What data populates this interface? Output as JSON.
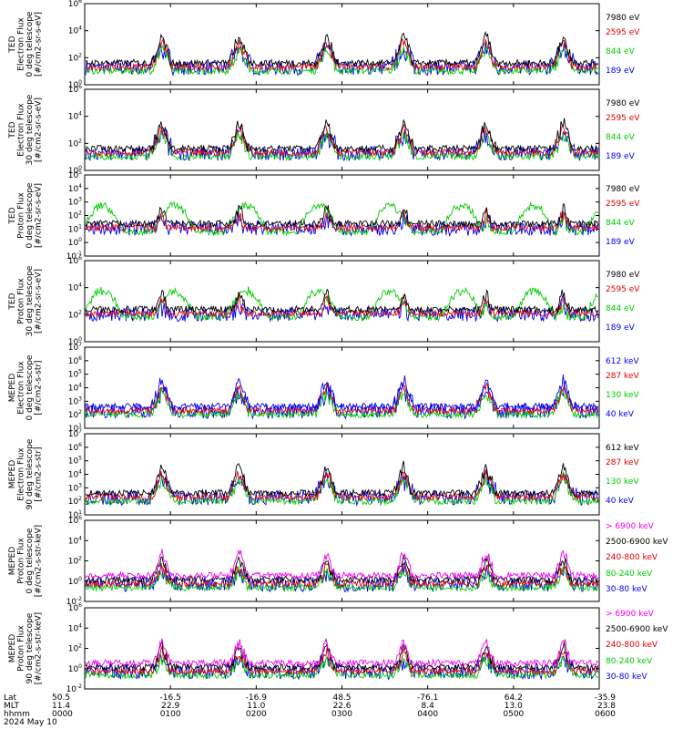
{
  "figure": {
    "panels": [
      {
        "ylabel": [
          "TED",
          "Electron Flux",
          "0 deg telescope",
          "[#/cm2-sr-s-eV]"
        ],
        "yticks": [
          "10^0",
          "10^2",
          "10^4",
          "10^6"
        ],
        "channels": [
          {
            "label": "7980 eV",
            "color": "#000000"
          },
          {
            "label": "2595 eV",
            "color": "#e00000"
          },
          {
            "label": "844 eV",
            "color": "#00cc00"
          },
          {
            "label": "189 eV",
            "color": "#0000ee"
          }
        ]
      },
      {
        "ylabel": [
          "TED",
          "Electron Flux",
          "30 deg telescope",
          "[#/cm2-sr-s-eV]"
        ],
        "yticks": [
          "10^0",
          "10^2",
          "10^4",
          "10^6"
        ],
        "channels": [
          {
            "label": "7980 eV",
            "color": "#000000"
          },
          {
            "label": "2595 eV",
            "color": "#e00000"
          },
          {
            "label": "844 eV",
            "color": "#00cc00"
          },
          {
            "label": "189 eV",
            "color": "#0000ee"
          }
        ]
      },
      {
        "ylabel": [
          "TED",
          "Proton Flux",
          "0 deg telescope",
          "[#/cm2-sr-s-eV]"
        ],
        "yticks": [
          "10^-1",
          "10^0",
          "10^1",
          "10^2",
          "10^3",
          "10^4",
          "10^5"
        ],
        "channels": [
          {
            "label": "7980 eV",
            "color": "#000000"
          },
          {
            "label": "2595 eV",
            "color": "#e00000"
          },
          {
            "label": "844 eV",
            "color": "#00cc00"
          },
          {
            "label": "189 eV",
            "color": "#0000ee"
          }
        ]
      },
      {
        "ylabel": [
          "TED",
          "Proton Flux",
          "30 deg telescope",
          "[#/cm2-sr-s-eV]"
        ],
        "yticks": [
          "10^0",
          "10^2",
          "10^4",
          "10^6"
        ],
        "channels": [
          {
            "label": "7980 eV",
            "color": "#000000"
          },
          {
            "label": "2595 eV",
            "color": "#e00000"
          },
          {
            "label": "844 eV",
            "color": "#00cc00"
          },
          {
            "label": "189 eV",
            "color": "#0000ee"
          }
        ]
      },
      {
        "ylabel": [
          "MEPED",
          "Electron Flux",
          "0 deg telescope",
          "[#/cm2-s-str]"
        ],
        "yticks": [
          "10^1",
          "10^2",
          "10^3",
          "10^4",
          "10^5",
          "10^6",
          "10^7"
        ],
        "channels": [
          {
            "label": "612 keV",
            "color": "#0000ee"
          },
          {
            "label": "287 keV",
            "color": "#e00000"
          },
          {
            "label": "130 keV",
            "color": "#00cc00"
          },
          {
            "label": "40 keV",
            "color": "#0000ee"
          }
        ]
      },
      {
        "ylabel": [
          "MEPED",
          "Electron Flux",
          "90 deg telescope",
          "[#/cm2-s-str]"
        ],
        "yticks": [
          "10^1",
          "10^2",
          "10^3",
          "10^4",
          "10^5",
          "10^6",
          "10^7"
        ],
        "channels": [
          {
            "label": "612 keV",
            "color": "#000000"
          },
          {
            "label": "287 keV",
            "color": "#e00000"
          },
          {
            "label": "130 keV",
            "color": "#00cc00"
          },
          {
            "label": "40 keV",
            "color": "#0000ee"
          }
        ]
      },
      {
        "ylabel": [
          "MEPED",
          "Proton Flux",
          "0 deg telescope",
          "[#/cm2-s-str-keV]"
        ],
        "yticks": [
          "10^-2",
          "10^0",
          "10^2",
          "10^4",
          "10^6"
        ],
        "channels": [
          {
            "label": "> 6900 keV",
            "color": "#ee00ee"
          },
          {
            "label": "2500-6900 keV",
            "color": "#000000"
          },
          {
            "label": "240-800 keV",
            "color": "#e00000"
          },
          {
            "label": "80-240 keV",
            "color": "#00cc00"
          },
          {
            "label": "30-80 keV",
            "color": "#0000ee"
          }
        ]
      },
      {
        "ylabel": [
          "MEPED",
          "Proton Flux",
          "90 deg telescope",
          "[#/cm2-s-str-keV]"
        ],
        "yticks": [
          "10^-2",
          "10^0",
          "10^2",
          "10^4",
          "10^6"
        ],
        "channels": [
          {
            "label": "> 6900 keV",
            "color": "#ee00ee"
          },
          {
            "label": "2500-6900 keV",
            "color": "#000000"
          },
          {
            "label": "240-800 keV",
            "color": "#e00000"
          },
          {
            "label": "80-240 keV",
            "color": "#00cc00"
          },
          {
            "label": "30-80 keV",
            "color": "#0000ee"
          }
        ]
      }
    ],
    "xaxis": {
      "row_labels": [
        "Lat",
        "MLT",
        "hhmm",
        "2024 May 10"
      ],
      "lat": [
        "50.5",
        "-16.5",
        "-16.9",
        "48.5",
        "-76.1",
        "64.2",
        "-35.9"
      ],
      "mlt": [
        "11.4",
        "22.9",
        "11.0",
        "22.6",
        "8.4",
        "13.0",
        "23.8"
      ],
      "hhmm": [
        "0000",
        "0100",
        "0200",
        "0300",
        "0400",
        "0500",
        "0600"
      ]
    }
  },
  "chart_data": {
    "type": "line",
    "title": "",
    "xlabel": "hhmm",
    "date": "2024 May 10",
    "xlim": [
      "0000",
      "0600"
    ],
    "x_ticks": [
      "0000",
      "0100",
      "0200",
      "0300",
      "0400",
      "0500",
      "0600"
    ],
    "lat_ticks": [
      50.5,
      -16.5,
      -16.9,
      48.5,
      -76.1,
      64.2,
      -35.9
    ],
    "mlt_ticks": [
      11.4,
      22.9,
      11.0,
      22.6,
      8.4,
      13.0,
      23.8
    ],
    "log_scale_y": true,
    "grid": false,
    "legend_placement": "right of each panel"
  }
}
